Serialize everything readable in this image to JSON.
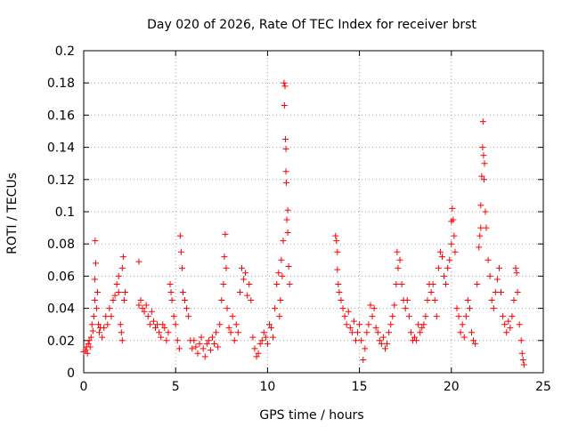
{
  "chart_data": {
    "type": "scatter",
    "title": "Day 020 of 2026, Rate Of TEC Index for receiver brst",
    "xlabel": "GPS time / hours",
    "ylabel": "ROTI / TECUs",
    "xlim": [
      0,
      25
    ],
    "ylim": [
      0,
      0.2
    ],
    "x_ticks": [
      "0",
      "5",
      "10",
      "15",
      "20",
      "25"
    ],
    "y_ticks": [
      "0",
      "0.02",
      "0.04",
      "0.06",
      "0.08",
      "0.1",
      "0.12",
      "0.14",
      "0.16",
      "0.18",
      "0.2"
    ],
    "grid": true,
    "marker": "plus",
    "color": "#ff0000",
    "series": [
      {
        "points": [
          [
            0.0,
            0.013
          ],
          [
            0.1,
            0.014
          ],
          [
            0.15,
            0.016
          ],
          [
            0.2,
            0.012
          ],
          [
            0.25,
            0.018
          ],
          [
            0.3,
            0.02
          ],
          [
            0.35,
            0.016
          ],
          [
            0.4,
            0.022
          ],
          [
            0.45,
            0.03
          ],
          [
            0.5,
            0.026
          ],
          [
            0.55,
            0.035
          ],
          [
            0.6,
            0.045
          ],
          [
            0.6,
            0.058
          ],
          [
            0.62,
            0.082
          ],
          [
            0.65,
            0.068
          ],
          [
            0.7,
            0.04
          ],
          [
            0.75,
            0.05
          ],
          [
            0.8,
            0.03
          ],
          [
            0.85,
            0.025
          ],
          [
            0.9,
            0.028
          ],
          [
            1.0,
            0.022
          ],
          [
            1.1,
            0.028
          ],
          [
            1.2,
            0.035
          ],
          [
            1.3,
            0.03
          ],
          [
            1.4,
            0.04
          ],
          [
            1.5,
            0.035
          ],
          [
            1.6,
            0.045
          ],
          [
            1.7,
            0.048
          ],
          [
            1.8,
            0.055
          ],
          [
            1.9,
            0.05
          ],
          [
            1.9,
            0.06
          ],
          [
            2.0,
            0.03
          ],
          [
            2.05,
            0.025
          ],
          [
            2.1,
            0.02
          ],
          [
            2.1,
            0.065
          ],
          [
            2.15,
            0.072
          ],
          [
            2.2,
            0.045
          ],
          [
            2.25,
            0.05
          ],
          [
            3.0,
            0.069
          ],
          [
            3.0,
            0.042
          ],
          [
            3.1,
            0.045
          ],
          [
            3.2,
            0.04
          ],
          [
            3.3,
            0.038
          ],
          [
            3.4,
            0.042
          ],
          [
            3.5,
            0.035
          ],
          [
            3.6,
            0.03
          ],
          [
            3.7,
            0.038
          ],
          [
            3.8,
            0.032
          ],
          [
            3.9,
            0.028
          ],
          [
            4.0,
            0.03
          ],
          [
            4.1,
            0.025
          ],
          [
            4.2,
            0.022
          ],
          [
            4.3,
            0.03
          ],
          [
            4.4,
            0.028
          ],
          [
            4.5,
            0.02
          ],
          [
            4.6,
            0.025
          ],
          [
            4.7,
            0.055
          ],
          [
            4.75,
            0.05
          ],
          [
            4.8,
            0.045
          ],
          [
            4.9,
            0.035
          ],
          [
            5.0,
            0.03
          ],
          [
            5.1,
            0.02
          ],
          [
            5.2,
            0.015
          ],
          [
            5.25,
            0.085
          ],
          [
            5.3,
            0.075
          ],
          [
            5.35,
            0.065
          ],
          [
            5.4,
            0.05
          ],
          [
            5.5,
            0.045
          ],
          [
            5.6,
            0.04
          ],
          [
            5.7,
            0.035
          ],
          [
            5.8,
            0.02
          ],
          [
            5.9,
            0.015
          ],
          [
            6.0,
            0.02
          ],
          [
            6.1,
            0.016
          ],
          [
            6.2,
            0.012
          ],
          [
            6.3,
            0.018
          ],
          [
            6.4,
            0.022
          ],
          [
            6.5,
            0.015
          ],
          [
            6.6,
            0.01
          ],
          [
            6.7,
            0.018
          ],
          [
            6.8,
            0.02
          ],
          [
            6.9,
            0.014
          ],
          [
            7.0,
            0.022
          ],
          [
            7.1,
            0.018
          ],
          [
            7.2,
            0.025
          ],
          [
            7.3,
            0.016
          ],
          [
            7.4,
            0.03
          ],
          [
            7.5,
            0.045
          ],
          [
            7.6,
            0.055
          ],
          [
            7.65,
            0.072
          ],
          [
            7.7,
            0.086
          ],
          [
            7.75,
            0.065
          ],
          [
            7.8,
            0.04
          ],
          [
            7.9,
            0.028
          ],
          [
            8.0,
            0.025
          ],
          [
            8.1,
            0.035
          ],
          [
            8.2,
            0.02
          ],
          [
            8.3,
            0.03
          ],
          [
            8.4,
            0.025
          ],
          [
            8.5,
            0.05
          ],
          [
            8.6,
            0.065
          ],
          [
            8.7,
            0.058
          ],
          [
            8.8,
            0.062
          ],
          [
            8.9,
            0.048
          ],
          [
            9.0,
            0.055
          ],
          [
            9.1,
            0.045
          ],
          [
            9.2,
            0.022
          ],
          [
            9.3,
            0.015
          ],
          [
            9.4,
            0.01
          ],
          [
            9.5,
            0.012
          ],
          [
            9.6,
            0.018
          ],
          [
            9.7,
            0.02
          ],
          [
            9.8,
            0.025
          ],
          [
            9.9,
            0.022
          ],
          [
            10.0,
            0.018
          ],
          [
            10.1,
            0.03
          ],
          [
            10.2,
            0.028
          ],
          [
            10.3,
            0.022
          ],
          [
            10.4,
            0.04
          ],
          [
            10.5,
            0.055
          ],
          [
            10.6,
            0.062
          ],
          [
            10.65,
            0.035
          ],
          [
            10.7,
            0.045
          ],
          [
            10.75,
            0.07
          ],
          [
            10.8,
            0.06
          ],
          [
            10.85,
            0.082
          ],
          [
            10.9,
            0.18
          ],
          [
            10.95,
            0.178
          ],
          [
            10.92,
            0.166
          ],
          [
            10.97,
            0.145
          ],
          [
            11.0,
            0.139
          ],
          [
            11.0,
            0.125
          ],
          [
            11.02,
            0.118
          ],
          [
            11.05,
            0.095
          ],
          [
            11.1,
            0.101
          ],
          [
            11.1,
            0.087
          ],
          [
            11.15,
            0.066
          ],
          [
            11.2,
            0.055
          ],
          [
            13.7,
            0.085
          ],
          [
            13.75,
            0.082
          ],
          [
            13.8,
            0.075
          ],
          [
            13.8,
            0.064
          ],
          [
            13.85,
            0.055
          ],
          [
            13.9,
            0.05
          ],
          [
            14.0,
            0.045
          ],
          [
            14.1,
            0.04
          ],
          [
            14.2,
            0.035
          ],
          [
            14.3,
            0.03
          ],
          [
            14.4,
            0.038
          ],
          [
            14.5,
            0.028
          ],
          [
            14.6,
            0.025
          ],
          [
            14.7,
            0.032
          ],
          [
            14.8,
            0.02
          ],
          [
            14.9,
            0.025
          ],
          [
            15.0,
            0.03
          ],
          [
            15.1,
            0.02
          ],
          [
            15.2,
            0.008
          ],
          [
            15.3,
            0.015
          ],
          [
            15.4,
            0.025
          ],
          [
            15.5,
            0.03
          ],
          [
            15.6,
            0.042
          ],
          [
            15.7,
            0.035
          ],
          [
            15.8,
            0.04
          ],
          [
            15.9,
            0.028
          ],
          [
            16.0,
            0.025
          ],
          [
            16.1,
            0.02
          ],
          [
            16.2,
            0.018
          ],
          [
            16.3,
            0.022
          ],
          [
            16.4,
            0.015
          ],
          [
            16.5,
            0.018
          ],
          [
            16.6,
            0.025
          ],
          [
            16.7,
            0.03
          ],
          [
            16.8,
            0.035
          ],
          [
            16.9,
            0.042
          ],
          [
            17.0,
            0.055
          ],
          [
            17.05,
            0.075
          ],
          [
            17.1,
            0.065
          ],
          [
            17.2,
            0.07
          ],
          [
            17.3,
            0.055
          ],
          [
            17.4,
            0.045
          ],
          [
            17.5,
            0.04
          ],
          [
            17.6,
            0.045
          ],
          [
            17.7,
            0.035
          ],
          [
            17.8,
            0.025
          ],
          [
            17.9,
            0.02
          ],
          [
            18.0,
            0.022
          ],
          [
            18.1,
            0.02
          ],
          [
            18.2,
            0.03
          ],
          [
            18.3,
            0.025
          ],
          [
            18.4,
            0.028
          ],
          [
            18.5,
            0.03
          ],
          [
            18.6,
            0.035
          ],
          [
            18.7,
            0.045
          ],
          [
            18.8,
            0.055
          ],
          [
            18.9,
            0.05
          ],
          [
            19.0,
            0.055
          ],
          [
            19.1,
            0.045
          ],
          [
            19.2,
            0.035
          ],
          [
            19.3,
            0.065
          ],
          [
            19.4,
            0.075
          ],
          [
            19.5,
            0.072
          ],
          [
            19.6,
            0.06
          ],
          [
            19.7,
            0.055
          ],
          [
            19.8,
            0.065
          ],
          [
            19.9,
            0.07
          ],
          [
            20.0,
            0.08
          ],
          [
            20.0,
            0.094
          ],
          [
            20.05,
            0.102
          ],
          [
            20.1,
            0.095
          ],
          [
            20.15,
            0.085
          ],
          [
            20.2,
            0.075
          ],
          [
            20.3,
            0.04
          ],
          [
            20.4,
            0.035
          ],
          [
            20.5,
            0.025
          ],
          [
            20.6,
            0.03
          ],
          [
            20.7,
            0.022
          ],
          [
            20.8,
            0.035
          ],
          [
            20.9,
            0.045
          ],
          [
            21.0,
            0.04
          ],
          [
            21.1,
            0.025
          ],
          [
            21.2,
            0.02
          ],
          [
            21.3,
            0.018
          ],
          [
            21.4,
            0.055
          ],
          [
            21.5,
            0.078
          ],
          [
            21.55,
            0.085
          ],
          [
            21.6,
            0.09
          ],
          [
            21.6,
            0.104
          ],
          [
            21.65,
            0.122
          ],
          [
            21.7,
            0.14
          ],
          [
            21.72,
            0.156
          ],
          [
            21.75,
            0.135
          ],
          [
            21.78,
            0.12
          ],
          [
            21.8,
            0.13
          ],
          [
            21.85,
            0.1
          ],
          [
            21.9,
            0.09
          ],
          [
            22.0,
            0.07
          ],
          [
            22.1,
            0.06
          ],
          [
            22.2,
            0.045
          ],
          [
            22.3,
            0.04
          ],
          [
            22.4,
            0.05
          ],
          [
            22.5,
            0.058
          ],
          [
            22.6,
            0.065
          ],
          [
            22.7,
            0.05
          ],
          [
            22.8,
            0.035
          ],
          [
            22.9,
            0.03
          ],
          [
            23.0,
            0.025
          ],
          [
            23.1,
            0.032
          ],
          [
            23.2,
            0.028
          ],
          [
            23.3,
            0.035
          ],
          [
            23.4,
            0.045
          ],
          [
            23.5,
            0.065
          ],
          [
            23.55,
            0.062
          ],
          [
            23.6,
            0.05
          ],
          [
            23.7,
            0.03
          ],
          [
            23.8,
            0.02
          ],
          [
            23.85,
            0.012
          ],
          [
            23.9,
            0.008
          ],
          [
            23.95,
            0.005
          ]
        ]
      }
    ]
  }
}
